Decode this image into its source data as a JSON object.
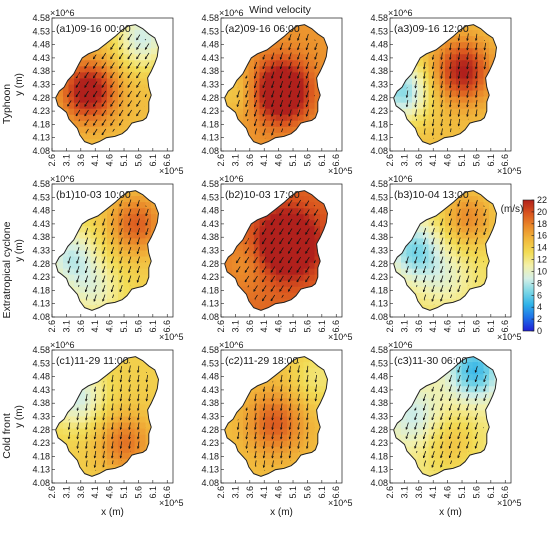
{
  "figure_title": "Wind velocity",
  "colors": {
    "colormap": [
      "#1f1fd6",
      "#1e6fe8",
      "#2fb2e8",
      "#7cd7e6",
      "#d4efe6",
      "#f3f0a8",
      "#f2dc55",
      "#f1b83c",
      "#ea8a2a",
      "#d9531e",
      "#b0201c"
    ],
    "axis": "#1a1a1a",
    "coast": "#222222",
    "arrow": "#111111"
  },
  "rows": [
    {
      "label": "Typhoon",
      "ylabel": "y (m)"
    },
    {
      "label": "Extratropical cyclone",
      "ylabel": "y (m)"
    },
    {
      "label": "Cold front",
      "ylabel": "y (m)"
    }
  ],
  "panels": [
    {
      "label": "(a1)09-16 00:00",
      "row": 0,
      "col": 0
    },
    {
      "label": "(a2)09-16 06:00",
      "row": 0,
      "col": 1
    },
    {
      "label": "(a3)09-16 12:00",
      "row": 0,
      "col": 2
    },
    {
      "label": "(b1)10-03 10:00",
      "row": 1,
      "col": 0
    },
    {
      "label": "(b2)10-03 17:00",
      "row": 1,
      "col": 1
    },
    {
      "label": "(b3)10-04 13:00",
      "row": 1,
      "col": 2
    },
    {
      "label": "(c1)11-29 11:00",
      "row": 2,
      "col": 0
    },
    {
      "label": "(c2)11-29 18:00",
      "row": 2,
      "col": 1
    },
    {
      "label": "(c3)11-30 06:00",
      "row": 2,
      "col": 2
    }
  ],
  "colorbar": {
    "unit": "(m/s)",
    "ticks": [
      "0",
      "2",
      "4",
      "6",
      "8",
      "10",
      "12",
      "14",
      "16",
      "18",
      "20",
      "22"
    ],
    "range": [
      0,
      22
    ]
  },
  "chart_data": {
    "type": "heatmap",
    "title": "Wind velocity",
    "xlabel": "x (m)",
    "ylabel": "y (m)",
    "x_multiplier": "×10^5",
    "y_multiplier": "×10^6",
    "x_ticks": [
      "2.6",
      "3.1",
      "3.6",
      "4.1",
      "4.6",
      "5.1",
      "5.6",
      "6.1",
      "6.6"
    ],
    "y_ticks": [
      "4.58",
      "4.53",
      "4.48",
      "4.43",
      "4.38",
      "4.33",
      "4.28",
      "4.23",
      "4.18",
      "4.13",
      "4.08"
    ],
    "xlim": [
      2.6,
      6.8
    ],
    "ylim": [
      4.08,
      4.58
    ],
    "colorbar_unit": "(m/s)",
    "colorbar_range": [
      0,
      22
    ],
    "panels": [
      {
        "label": "(a1)09-16 00:00",
        "wind_direction": "towards-southwest",
        "typical_speed_ms": 15
      },
      {
        "label": "(a2)09-16 06:00",
        "wind_direction": "towards-south-southwest",
        "typical_speed_ms": 17
      },
      {
        "label": "(a3)09-16 12:00",
        "wind_direction": "towards-south",
        "typical_speed_ms": 15
      },
      {
        "label": "(b1)10-03 10:00",
        "wind_direction": "towards-south-southwest",
        "typical_speed_ms": 14
      },
      {
        "label": "(b2)10-03 17:00",
        "wind_direction": "towards-southwest",
        "typical_speed_ms": 19
      },
      {
        "label": "(b3)10-04 13:00",
        "wind_direction": "towards-south-southwest",
        "typical_speed_ms": 13
      },
      {
        "label": "(c1)11-29 11:00",
        "wind_direction": "towards-south",
        "typical_speed_ms": 14
      },
      {
        "label": "(c2)11-29 18:00",
        "wind_direction": "towards-south",
        "typical_speed_ms": 15
      },
      {
        "label": "(c3)11-30 06:00",
        "wind_direction": "towards-south-southwest",
        "typical_speed_ms": 12
      }
    ]
  }
}
